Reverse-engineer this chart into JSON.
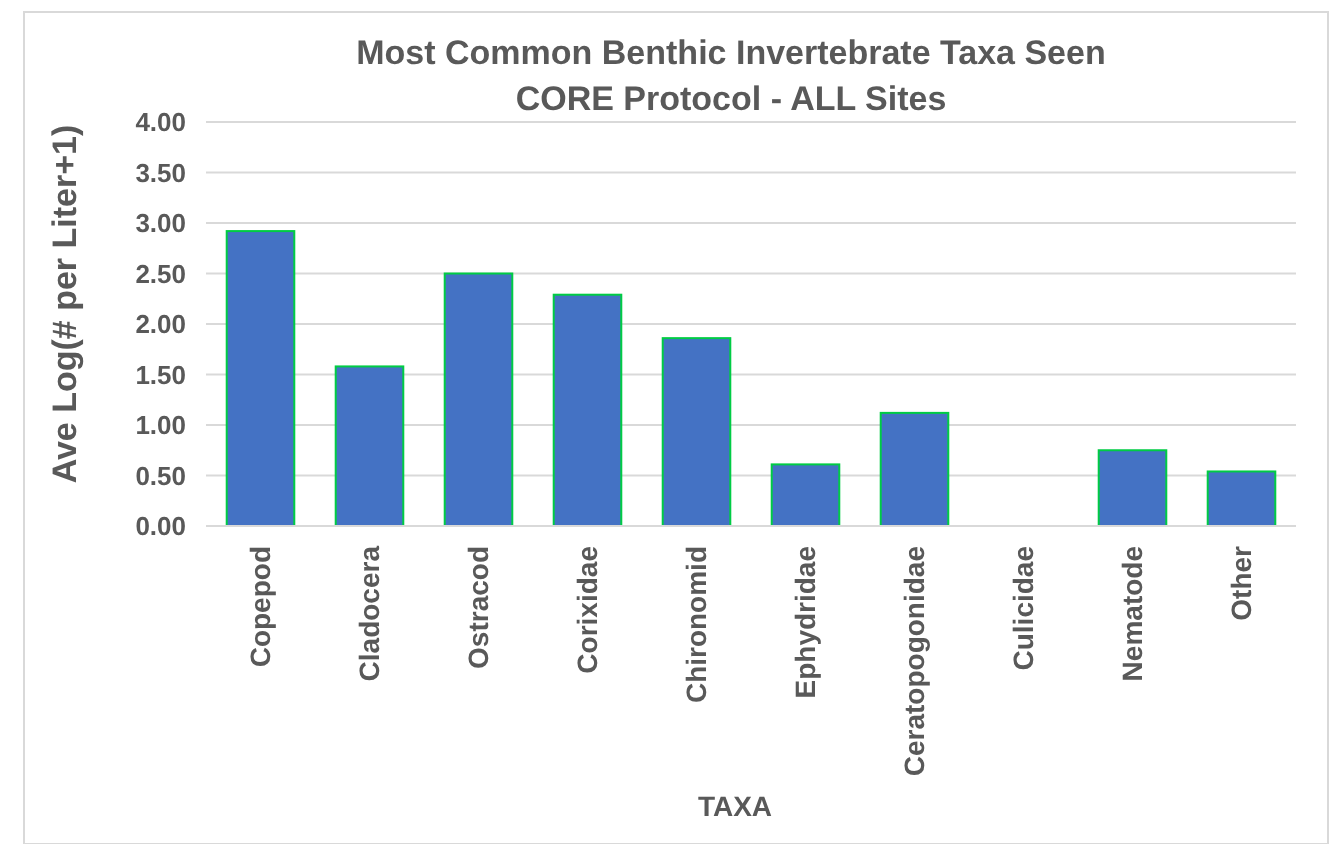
{
  "chart_data": {
    "type": "bar",
    "title": "Most Common Benthic Invertebrate Taxa Seen\nCORE Protocol - ALL Sites",
    "xlabel": "TAXA",
    "ylabel": "Ave Log(# per Liter+1)",
    "categories": [
      "Copepod",
      "Cladocera",
      "Ostracod",
      "Corixidae",
      "Chironomid",
      "Ephydridae",
      "Ceratopogonidae",
      "Culicidae",
      "Nematode",
      "Other"
    ],
    "values": [
      2.92,
      1.58,
      2.5,
      2.29,
      1.86,
      0.61,
      1.12,
      0,
      0.75,
      0.54
    ],
    "color": "#4472c4",
    "ylim": [
      0,
      4
    ],
    "yticks": [
      {
        "value": 0,
        "label": "0.00"
      },
      {
        "value": 0.5,
        "label": "0.50"
      },
      {
        "value": 1,
        "label": "1.00"
      },
      {
        "value": 1.5,
        "label": "1.50"
      },
      {
        "value": 2,
        "label": "2.00"
      },
      {
        "value": 2.5,
        "label": "2.50"
      },
      {
        "value": 3,
        "label": "3.00"
      },
      {
        "value": 3.5,
        "label": "3.50"
      },
      {
        "value": 4,
        "label": "4.00"
      }
    ],
    "grid": "y"
  }
}
